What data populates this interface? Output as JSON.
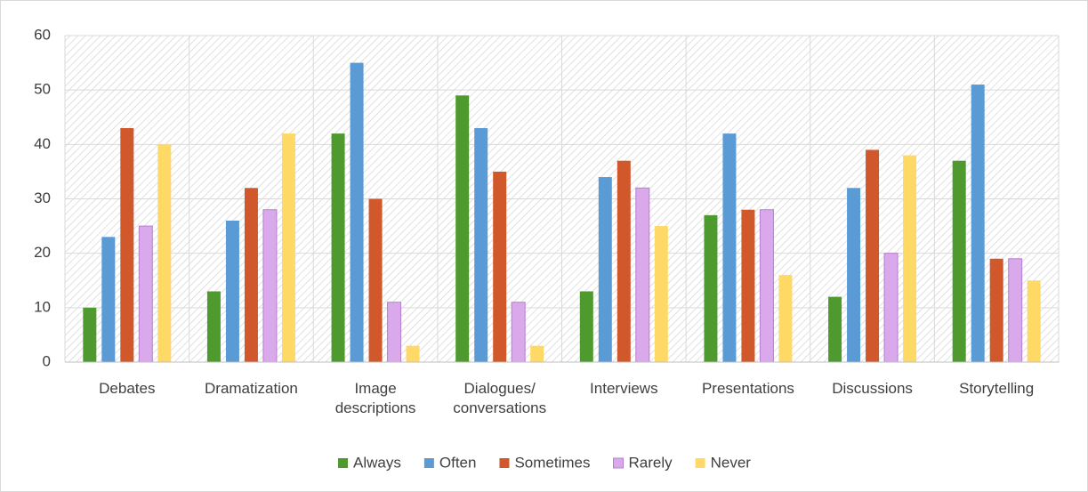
{
  "chart_data": {
    "type": "bar",
    "categories": [
      "Debates",
      "Dramatization",
      "Image\ndescriptions",
      "Dialogues/\nconversations",
      "Interviews",
      "Presentations",
      "Discussions",
      "Storytelling"
    ],
    "series": [
      {
        "name": "Always",
        "color": "#4e9a2f",
        "values": [
          10,
          13,
          42,
          49,
          13,
          27,
          12,
          37
        ]
      },
      {
        "name": "Often",
        "color": "#5b9bd5",
        "values": [
          23,
          26,
          55,
          43,
          34,
          42,
          32,
          51
        ]
      },
      {
        "name": "Sometimes",
        "color": "#d0582a",
        "values": [
          43,
          32,
          30,
          35,
          37,
          28,
          39,
          19
        ]
      },
      {
        "name": "Rarely",
        "color": "#d9a9ec",
        "values": [
          25,
          28,
          11,
          11,
          32,
          28,
          20,
          19
        ]
      },
      {
        "name": "Never",
        "color": "#ffd966",
        "values": [
          40,
          42,
          3,
          3,
          25,
          16,
          38,
          15
        ]
      }
    ],
    "ylim": [
      0,
      60
    ],
    "yticks": [
      0,
      10,
      20,
      30,
      40,
      50,
      60
    ],
    "grid": true,
    "legend": "bottom"
  }
}
